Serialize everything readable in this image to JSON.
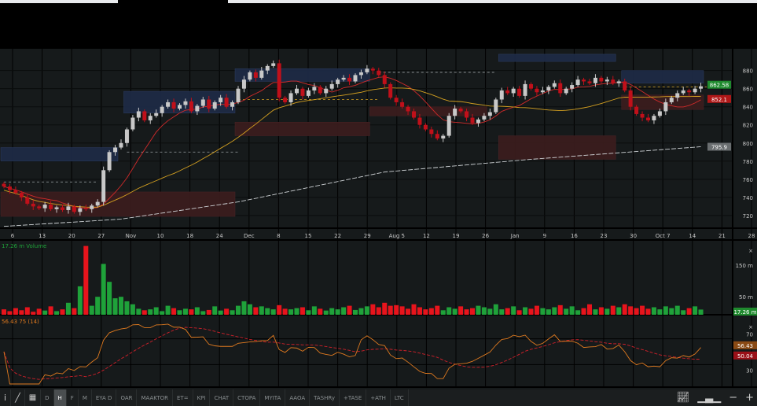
{
  "chart_data": {
    "type": "candlestick",
    "price_axis": {
      "ticks": [
        720,
        740,
        760,
        780,
        800,
        820,
        840,
        860,
        880
      ],
      "range": [
        706,
        904
      ]
    },
    "date_ticks": [
      "6",
      "13",
      "20",
      "27",
      "Nov",
      "10",
      "18",
      "24",
      "Dec",
      "8",
      "15",
      "22",
      "29",
      "Aug 5",
      "12",
      "19",
      "26",
      "Jan",
      "9",
      "16",
      "23",
      "30",
      "Oct 7",
      "14",
      "21",
      "28"
    ],
    "closes": [
      752,
      748,
      745,
      740,
      733,
      730,
      728,
      732,
      727,
      729,
      726,
      730,
      724,
      728,
      727,
      731,
      735,
      770,
      790,
      795,
      800,
      815,
      828,
      835,
      825,
      830,
      833,
      840,
      845,
      838,
      842,
      846,
      835,
      841,
      848,
      838,
      845,
      850,
      840,
      845,
      860,
      870,
      878,
      872,
      880,
      885,
      888,
      850,
      845,
      855,
      860,
      852,
      858,
      862,
      855,
      860,
      865,
      870,
      872,
      868,
      875,
      878,
      882,
      880,
      875,
      865,
      850,
      845,
      840,
      835,
      828,
      820,
      815,
      810,
      805,
      808,
      830,
      838,
      835,
      828,
      822,
      826,
      830,
      834,
      848,
      858,
      855,
      860,
      852,
      865,
      860,
      856,
      858,
      862,
      866,
      855,
      860,
      864,
      870,
      868,
      866,
      872,
      868,
      870,
      866,
      868,
      858,
      840,
      832,
      828,
      825,
      830,
      835,
      845,
      850,
      855,
      858,
      856,
      860,
      862.58
    ],
    "volumes_m": [
      18,
      12,
      22,
      15,
      25,
      10,
      20,
      14,
      28,
      12,
      18,
      40,
      22,
      95,
      230,
      30,
      60,
      170,
      110,
      55,
      60,
      45,
      35,
      20,
      15,
      18,
      25,
      12,
      30,
      22,
      15,
      20,
      18,
      25,
      12,
      16,
      28,
      14,
      20,
      15,
      30,
      45,
      35,
      25,
      28,
      22,
      18,
      32,
      20,
      18,
      22,
      25,
      15,
      28,
      20,
      14,
      22,
      18,
      25,
      30,
      16,
      22,
      28,
      35,
      25,
      40,
      30,
      32,
      28,
      20,
      35,
      25,
      18,
      22,
      30,
      15,
      25,
      20,
      28,
      18,
      22,
      30,
      25,
      20,
      35,
      18,
      22,
      28,
      15,
      25,
      20,
      30,
      22,
      18,
      25,
      32,
      20,
      28,
      15,
      22,
      35,
      18,
      25,
      20,
      30,
      25,
      35,
      28,
      22,
      30,
      20,
      25,
      18,
      28,
      22,
      30,
      15,
      22,
      28,
      17.26
    ],
    "ma_long": [
      [
        0,
        708
      ],
      [
        20,
        716
      ],
      [
        40,
        735
      ],
      [
        65,
        768
      ],
      [
        90,
        782
      ],
      [
        119,
        795.9
      ]
    ],
    "zones": [
      {
        "kind": "supply",
        "start": 0,
        "end": 20,
        "top": 795,
        "bottom": 780
      },
      {
        "kind": "demand",
        "start": 0,
        "end": 40,
        "top": 746,
        "bottom": 719
      },
      {
        "kind": "supply",
        "start": 21,
        "end": 40,
        "top": 857,
        "bottom": 833
      },
      {
        "kind": "demand",
        "start": 40,
        "end": 63,
        "top": 823,
        "bottom": 808
      },
      {
        "kind": "supply",
        "start": 40,
        "end": 63,
        "top": 882,
        "bottom": 868
      },
      {
        "kind": "demand",
        "start": 63,
        "end": 83,
        "top": 840,
        "bottom": 830
      },
      {
        "kind": "supply",
        "start": 85,
        "end": 105,
        "top": 898,
        "bottom": 890
      },
      {
        "kind": "demand",
        "start": 85,
        "end": 105,
        "top": 808,
        "bottom": 782
      },
      {
        "kind": "supply",
        "start": 106,
        "end": 120,
        "top": 880,
        "bottom": 866
      },
      {
        "kind": "demand",
        "start": 106,
        "end": 120,
        "top": 853,
        "bottom": 837
      }
    ],
    "levels": [
      {
        "price": 757,
        "start": 0,
        "end": 16,
        "color": "#9aa0a3"
      },
      {
        "price": 790,
        "start": 21,
        "end": 40,
        "color": "#9aa0a3"
      },
      {
        "price": 848,
        "start": 40,
        "end": 64,
        "color": "#d4a020"
      },
      {
        "price": 878,
        "start": 64,
        "end": 84,
        "color": "#9aa0a3"
      },
      {
        "price": 862,
        "start": 106,
        "end": 120,
        "color": "#d4a020"
      }
    ],
    "volume_axis": {
      "ticks": [
        "50 m",
        "150 m"
      ]
    },
    "rsi_period": 14
  },
  "labels": {
    "last_price": "862.58",
    "ma_short_value": "852.1",
    "ma_long_value": "795.9",
    "volume_title": "17.26 m Volume",
    "volume_value": "17.26 m",
    "rsi_title": "56.43 75 (14)",
    "rsi_value": "56.43",
    "rsi_ma_value": "50.04",
    "rsi_ticks": [
      "70",
      "30"
    ],
    "close_x": "×"
  },
  "colors": {
    "up": "#c8c8c8",
    "down": "#c0101a",
    "vol_up": "#1fa23a",
    "vol_down": "#e8141c",
    "supply": "#1e2a44",
    "demand": "#3a1c1e",
    "ma_short": "#d02a2a",
    "ma_mid": "#d4a020",
    "ma_long": "#cfd3d6",
    "rsi": "#e07a1f",
    "rsi_ma": "#d0202a"
  },
  "toolbar": {
    "items": [
      "D",
      "H",
      "F",
      "M",
      "EYA D",
      "OAR",
      "MAAKTOR",
      "ET=",
      "KPI",
      "CHAT",
      "CTOPA",
      "MYITA",
      "AAOA",
      "TASHRy",
      "+TASE",
      "+ATH",
      "LTC"
    ],
    "selected": "H",
    "right": [
      "chart-type",
      "bars",
      "zoom-out",
      "zoom-in"
    ]
  }
}
